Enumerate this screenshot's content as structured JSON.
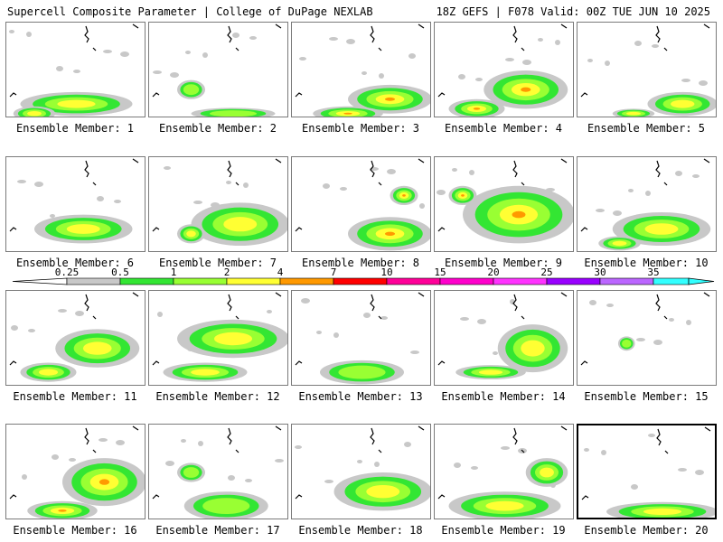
{
  "header": {
    "left": "Supercell Composite Parameter | College of DuPage NEXLAB",
    "right": "18Z GEFS | F078 Valid: 00Z TUE JUN 10 2025"
  },
  "legend": {
    "ticks": [
      "0.25",
      "0.5",
      "1",
      "2",
      "4",
      "7",
      "10",
      "15",
      "20",
      "25",
      "30",
      "35"
    ],
    "colors": [
      "#c8c8c8",
      "#33e633",
      "#99ff33",
      "#ffff33",
      "#ff9900",
      "#ff0000",
      "#ff0099",
      "#ff00cc",
      "#ff33ff",
      "#9900ff",
      "#bb66ff",
      "#33ffff"
    ]
  },
  "members": [
    {
      "label": "Ensemble Member: 1",
      "intensity": 2,
      "blobs": [
        [
          0.5,
          0.85,
          0.8,
          0.25
        ],
        [
          0.2,
          0.95,
          0.3,
          0.15
        ]
      ]
    },
    {
      "label": "Ensemble Member: 2",
      "intensity": 1,
      "blobs": [
        [
          0.3,
          0.7,
          0.2,
          0.2
        ],
        [
          0.6,
          0.95,
          0.6,
          0.12
        ]
      ]
    },
    {
      "label": "Ensemble Member: 3",
      "intensity": 3,
      "blobs": [
        [
          0.7,
          0.8,
          0.6,
          0.3
        ],
        [
          0.4,
          0.95,
          0.5,
          0.15
        ]
      ]
    },
    {
      "label": "Ensemble Member: 4",
      "intensity": 3,
      "blobs": [
        [
          0.65,
          0.7,
          0.6,
          0.4
        ],
        [
          0.3,
          0.9,
          0.4,
          0.2
        ]
      ]
    },
    {
      "label": "Ensemble Member: 5",
      "intensity": 2,
      "blobs": [
        [
          0.75,
          0.85,
          0.5,
          0.25
        ],
        [
          0.4,
          0.95,
          0.3,
          0.1
        ]
      ]
    },
    {
      "label": "Ensemble Member: 6",
      "intensity": 2,
      "blobs": [
        [
          0.55,
          0.75,
          0.7,
          0.3
        ]
      ]
    },
    {
      "label": "Ensemble Member: 7",
      "intensity": 2,
      "blobs": [
        [
          0.65,
          0.7,
          0.7,
          0.45
        ],
        [
          0.3,
          0.8,
          0.2,
          0.2
        ]
      ]
    },
    {
      "label": "Ensemble Member: 8",
      "intensity": 4,
      "blobs": [
        [
          0.7,
          0.8,
          0.6,
          0.35
        ],
        [
          0.8,
          0.4,
          0.2,
          0.2
        ]
      ]
    },
    {
      "label": "Ensemble Member: 9",
      "intensity": 3,
      "blobs": [
        [
          0.6,
          0.6,
          0.8,
          0.6
        ],
        [
          0.2,
          0.4,
          0.2,
          0.2
        ]
      ]
    },
    {
      "label": "Ensemble Member: 10",
      "intensity": 2,
      "blobs": [
        [
          0.6,
          0.75,
          0.7,
          0.35
        ],
        [
          0.3,
          0.9,
          0.3,
          0.15
        ]
      ]
    },
    {
      "label": "Ensemble Member: 11",
      "intensity": 2,
      "blobs": [
        [
          0.65,
          0.6,
          0.6,
          0.4
        ],
        [
          0.3,
          0.85,
          0.4,
          0.2
        ]
      ]
    },
    {
      "label": "Ensemble Member: 12",
      "intensity": 2,
      "blobs": [
        [
          0.6,
          0.5,
          0.8,
          0.4
        ],
        [
          0.4,
          0.85,
          0.6,
          0.2
        ]
      ]
    },
    {
      "label": "Ensemble Member: 13",
      "intensity": 1,
      "blobs": [
        [
          0.5,
          0.85,
          0.6,
          0.25
        ]
      ]
    },
    {
      "label": "Ensemble Member: 14",
      "intensity": 2,
      "blobs": [
        [
          0.7,
          0.6,
          0.5,
          0.5
        ],
        [
          0.4,
          0.85,
          0.5,
          0.15
        ]
      ]
    },
    {
      "label": "Ensemble Member: 15",
      "intensity": 1,
      "blobs": [
        [
          0.35,
          0.55,
          0.12,
          0.15
        ]
      ]
    },
    {
      "label": "Ensemble Member: 16",
      "intensity": 3,
      "blobs": [
        [
          0.7,
          0.6,
          0.6,
          0.5
        ],
        [
          0.4,
          0.9,
          0.5,
          0.2
        ]
      ]
    },
    {
      "label": "Ensemble Member: 17",
      "intensity": 1,
      "blobs": [
        [
          0.55,
          0.85,
          0.6,
          0.3
        ],
        [
          0.3,
          0.5,
          0.2,
          0.2
        ]
      ]
    },
    {
      "label": "Ensemble Member: 18",
      "intensity": 2,
      "blobs": [
        [
          0.65,
          0.7,
          0.7,
          0.4
        ]
      ]
    },
    {
      "label": "Ensemble Member: 19",
      "intensity": 2,
      "blobs": [
        [
          0.5,
          0.85,
          0.8,
          0.3
        ],
        [
          0.8,
          0.5,
          0.3,
          0.3
        ]
      ]
    },
    {
      "label": "Ensemble Member: 20",
      "intensity": 2,
      "blobs": [
        [
          0.6,
          0.9,
          0.8,
          0.2
        ]
      ]
    }
  ],
  "selected_member": 20
}
